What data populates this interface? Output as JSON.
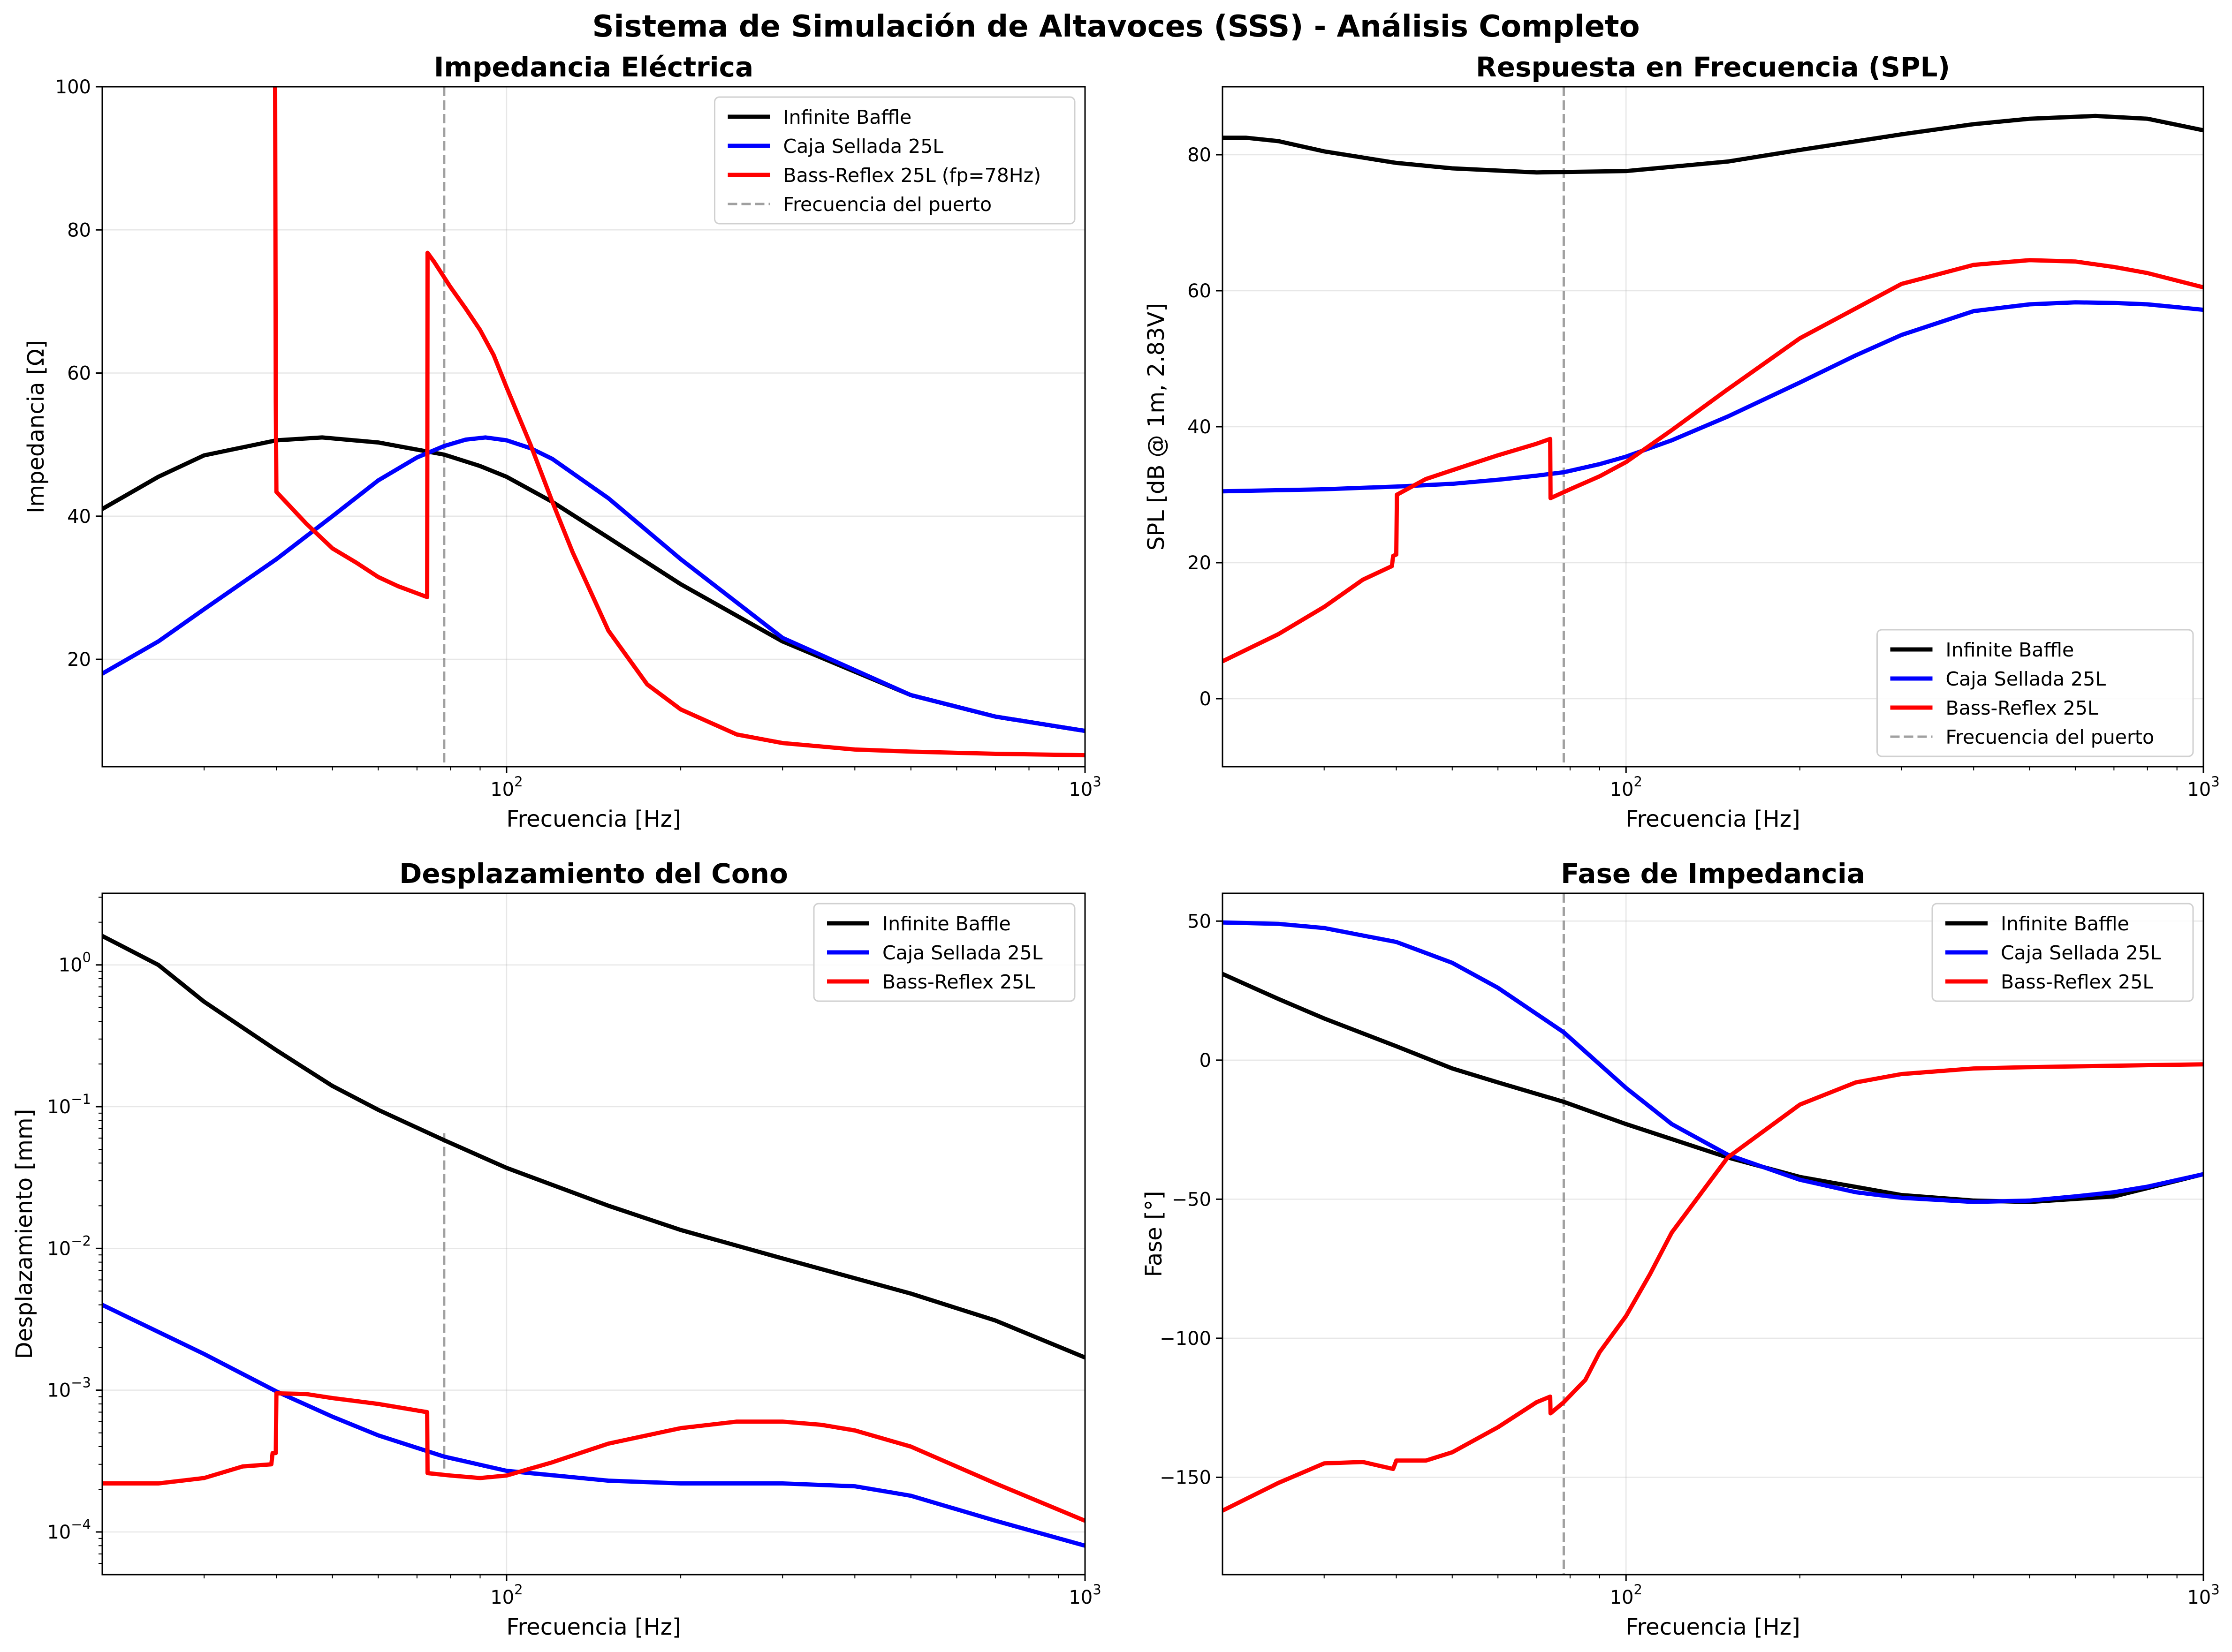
{
  "suptitle": "Sistema de Simulación de Altavoces (SSS) - Análisis Completo",
  "colors": {
    "infinite_baffle": "#000000",
    "sealed": "#0000ff",
    "bass_reflex": "#ff0000",
    "port_line": "#808080"
  },
  "chart_data": [
    {
      "id": "impedance",
      "type": "line",
      "title": "Impedancia Eléctrica",
      "xlabel": "Frecuencia [Hz]",
      "ylabel": "Impedancia [Ω]",
      "xscale": "log",
      "yscale": "linear",
      "xlim": [
        20,
        1000
      ],
      "ylim": [
        5,
        100
      ],
      "yticks": [
        20,
        40,
        60,
        80,
        100
      ],
      "grid": true,
      "legend": "top-right",
      "vline": {
        "x": 78,
        "name": "Frecuencia del puerto"
      },
      "series": [
        {
          "name": "Infinite Baffle",
          "color": "#000000",
          "x": [
            20,
            25,
            30,
            40,
            48,
            60,
            70,
            78,
            90,
            100,
            120,
            150,
            200,
            300,
            500,
            700,
            1000
          ],
          "y": [
            41,
            45.5,
            48.5,
            50.6,
            51,
            50.3,
            49.3,
            48.6,
            47,
            45.5,
            42,
            37,
            30.5,
            22.5,
            15,
            12,
            10
          ]
        },
        {
          "name": "Caja Sellada 25L",
          "color": "#0000ff",
          "x": [
            20,
            25,
            30,
            40,
            50,
            60,
            70,
            78,
            85,
            92,
            100,
            110,
            120,
            150,
            200,
            300,
            500,
            700,
            1000
          ],
          "y": [
            18,
            22.5,
            27,
            34,
            40,
            45,
            48.2,
            49.8,
            50.7,
            51,
            50.6,
            49.5,
            48,
            42.5,
            34,
            23,
            15,
            12,
            10
          ]
        },
        {
          "name": "Bass-Reflex 25L (fp=78Hz)",
          "color": "#ff0000",
          "x": [
            39.8,
            39.9,
            40,
            45,
            50,
            55,
            60,
            65,
            72.9,
            73,
            75,
            80,
            85,
            90,
            95,
            100,
            110,
            120,
            130,
            150,
            175,
            200,
            250,
            300,
            400,
            500,
            700,
            1000
          ],
          "y": [
            100,
            56,
            43.4,
            39,
            35.5,
            33.5,
            31.5,
            30.2,
            28.7,
            76.8,
            75.5,
            72,
            69,
            66,
            62.5,
            58,
            50,
            42,
            35,
            24,
            16.5,
            13,
            9.5,
            8.3,
            7.4,
            7.1,
            6.8,
            6.6
          ]
        },
        {
          "name": "Frecuencia del puerto",
          "color": "#808080",
          "style": "dashed"
        }
      ]
    },
    {
      "id": "spl",
      "type": "line",
      "title": "Respuesta en Frecuencia (SPL)",
      "xlabel": "Frecuencia [Hz]",
      "ylabel": "SPL [dB @ 1m, 2.83V]",
      "xscale": "log",
      "yscale": "linear",
      "xlim": [
        20,
        1000
      ],
      "ylim": [
        -10,
        90
      ],
      "yticks": [
        0,
        20,
        40,
        60,
        80
      ],
      "grid": true,
      "legend": "bottom-right",
      "vline": {
        "x": 78,
        "name": "Frecuencia del puerto"
      },
      "series": [
        {
          "name": "Infinite Baffle",
          "color": "#000000",
          "x": [
            20,
            22,
            25,
            30,
            40,
            50,
            70,
            100,
            150,
            200,
            300,
            400,
            500,
            650,
            800,
            1000
          ],
          "y": [
            82.5,
            82.5,
            82,
            80.5,
            78.8,
            78,
            77.4,
            77.6,
            79,
            80.7,
            83,
            84.5,
            85.3,
            85.7,
            85.3,
            83.6
          ]
        },
        {
          "name": "Caja Sellada 25L",
          "color": "#0000ff",
          "x": [
            20,
            30,
            40,
            50,
            60,
            70,
            78,
            90,
            100,
            120,
            150,
            200,
            250,
            300,
            400,
            500,
            600,
            700,
            800,
            1000
          ],
          "y": [
            30.5,
            30.8,
            31.2,
            31.6,
            32.2,
            32.8,
            33.3,
            34.5,
            35.6,
            38,
            41.5,
            46.5,
            50.5,
            53.5,
            57,
            58,
            58.3,
            58.2,
            58,
            57.2
          ]
        },
        {
          "name": "Bass-Reflex 25L",
          "color": "#ff0000",
          "x": [
            20,
            25,
            30,
            35,
            39.3,
            39.5,
            40,
            40.1,
            45,
            50,
            60,
            70,
            73.9,
            74,
            80,
            90,
            100,
            120,
            150,
            200,
            300,
            400,
            500,
            600,
            700,
            800,
            1000
          ],
          "y": [
            5.5,
            9.5,
            13.5,
            17.5,
            19.5,
            21,
            21.2,
            30,
            32.3,
            33.6,
            35.8,
            37.5,
            38.2,
            29.5,
            30.8,
            32.7,
            34.8,
            39.5,
            45.5,
            53,
            61,
            63.8,
            64.5,
            64.3,
            63.5,
            62.6,
            60.5
          ]
        },
        {
          "name": "Frecuencia del puerto",
          "color": "#808080",
          "style": "dashed"
        }
      ]
    },
    {
      "id": "displacement",
      "type": "line",
      "title": "Desplazamiento del Cono",
      "xlabel": "Frecuencia [Hz]",
      "ylabel": "Desplazamiento [mm]",
      "xscale": "log",
      "yscale": "log",
      "xlim": [
        20,
        1000
      ],
      "ylim": [
        5e-05,
        3.2
      ],
      "yticks_exp": [
        -4,
        -3,
        -2,
        -1,
        0
      ],
      "grid": true,
      "legend": "top-right",
      "vline": {
        "x": 78,
        "ymax": 0.065
      },
      "series": [
        {
          "name": "Infinite Baffle",
          "color": "#000000",
          "x": [
            20,
            25,
            30,
            40,
            50,
            60,
            78,
            100,
            150,
            200,
            300,
            500,
            700,
            1000
          ],
          "y": [
            1.6,
            1.0,
            0.55,
            0.25,
            0.14,
            0.095,
            0.058,
            0.037,
            0.02,
            0.0135,
            0.0085,
            0.0048,
            0.0031,
            0.0017
          ]
        },
        {
          "name": "Caja Sellada 25L",
          "color": "#0000ff",
          "x": [
            20,
            30,
            40,
            50,
            60,
            78,
            100,
            150,
            200,
            300,
            400,
            500,
            700,
            1000
          ],
          "y": [
            0.004,
            0.0018,
            0.00098,
            0.00065,
            0.00048,
            0.00034,
            0.00027,
            0.00023,
            0.00022,
            0.00022,
            0.00021,
            0.00018,
            0.00012,
            8e-05
          ]
        },
        {
          "name": "Bass-Reflex 25L",
          "color": "#ff0000",
          "x": [
            20,
            25,
            30,
            35,
            39.2,
            39.4,
            39.9,
            40,
            45,
            50,
            60,
            72.9,
            73,
            80,
            90,
            100,
            120,
            150,
            200,
            250,
            300,
            350,
            400,
            500,
            700,
            1000
          ],
          "y": [
            0.00022,
            0.00022,
            0.00024,
            0.00029,
            0.0003,
            0.00036,
            0.00036,
            0.00095,
            0.00094,
            0.00088,
            0.0008,
            0.0007,
            0.00026,
            0.00025,
            0.00024,
            0.00025,
            0.00031,
            0.00042,
            0.00054,
            0.0006,
            0.0006,
            0.00057,
            0.00052,
            0.0004,
            0.00022,
            0.00012
          ]
        }
      ]
    },
    {
      "id": "phase",
      "type": "line",
      "title": "Fase de Impedancia",
      "xlabel": "Frecuencia [Hz]",
      "ylabel": "Fase [°]",
      "xscale": "log",
      "yscale": "linear",
      "xlim": [
        20,
        1000
      ],
      "ylim": [
        -185,
        60
      ],
      "yticks": [
        -150,
        -100,
        -50,
        0,
        50
      ],
      "grid": true,
      "legend": "top-right",
      "vline": {
        "x": 78
      },
      "series": [
        {
          "name": "Infinite Baffle",
          "color": "#000000",
          "x": [
            20,
            25,
            30,
            40,
            50,
            60,
            78,
            100,
            150,
            200,
            300,
            400,
            500,
            700,
            1000
          ],
          "y": [
            31,
            22,
            15,
            5,
            -3,
            -8,
            -15,
            -23,
            -35,
            -42,
            -48.5,
            -50.5,
            -51,
            -49,
            -41
          ]
        },
        {
          "name": "Caja Sellada 25L",
          "color": "#0000ff",
          "x": [
            20,
            25,
            30,
            40,
            50,
            60,
            78,
            100,
            120,
            150,
            200,
            250,
            300,
            400,
            500,
            600,
            700,
            800,
            1000
          ],
          "y": [
            49.5,
            49,
            47.5,
            42.5,
            35,
            26,
            10,
            -10,
            -23,
            -34,
            -43,
            -47.5,
            -49.5,
            -51,
            -50.5,
            -49,
            -47.5,
            -45.5,
            -41
          ]
        },
        {
          "name": "Bass-Reflex 25L",
          "color": "#ff0000",
          "x": [
            20,
            25,
            30,
            35,
            39.5,
            40,
            45,
            50,
            60,
            70,
            73.9,
            74,
            78,
            85,
            90,
            100,
            110,
            120,
            150,
            200,
            250,
            300,
            400,
            500,
            700,
            1000
          ],
          "y": [
            -162,
            -152,
            -145,
            -144.5,
            -147,
            -144,
            -144,
            -141,
            -132,
            -123,
            -121,
            -127,
            -123,
            -115,
            -105,
            -92,
            -77,
            -62,
            -35,
            -16,
            -8,
            -5,
            -3,
            -2.5,
            -2,
            -1.5
          ]
        }
      ]
    }
  ]
}
